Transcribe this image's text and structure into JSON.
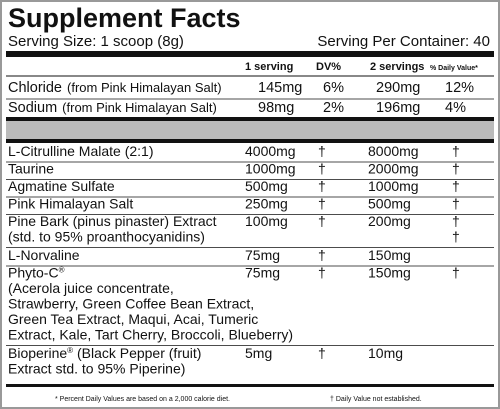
{
  "title": "Supplement Facts",
  "serving_size": "Serving Size: 1 scoop (8g)",
  "servings_per_container": "Serving Per Container: 40",
  "header": {
    "col1": "1 serving",
    "col2": "DV%",
    "col3": "2 servings",
    "col4": "% Daily Value*"
  },
  "electrolytes": [
    {
      "name": "Chloride",
      "source": "(from Pink Himalayan Salt)",
      "amount": "145mg",
      "dv": "6%",
      "amount2": "290mg",
      "dv2": "12%"
    },
    {
      "name": "Sodium",
      "source": "(from Pink Himalayan Salt)",
      "amount": "98mg",
      "dv": "2%",
      "amount2": "196mg",
      "dv2": "4%"
    }
  ],
  "ingredients": [
    {
      "name": "L-Citrulline Malate (2:1)",
      "amount": "4000mg",
      "dv": "†",
      "amount2": "8000mg",
      "dv2": "†"
    },
    {
      "name": "Taurine",
      "amount": "1000mg",
      "dv": "†",
      "amount2": "2000mg",
      "dv2": "†"
    },
    {
      "name": "Agmatine Sulfate",
      "amount": "500mg",
      "dv": "†",
      "amount2": "1000mg",
      "dv2": "†"
    },
    {
      "name": "Pink Himalayan Salt",
      "amount": "250mg",
      "dv": "†",
      "amount2": "500mg",
      "dv2": "†"
    },
    {
      "name": "Pine Bark (pinus pinaster) Extract",
      "more_lines": [
        "(std. to 95% proanthocyanidins)"
      ],
      "amount": "100mg",
      "dv": "†",
      "amount2": "200mg",
      "dv2": "†",
      "dv2_extra": "†"
    },
    {
      "name": "L-Norvaline",
      "amount": "75mg",
      "dv": "†",
      "amount2": "150mg"
    },
    {
      "name": "Phyto-C",
      "reg": "®",
      "more_lines": [
        "(Acerola juice concentrate,",
        "Strawberry, Green Coffee Bean Extract,",
        "Green Tea Extract, Maqui, Acai, Tumeric",
        "Extract, Kale, Tart Cherry, Broccoli, Blueberry)"
      ],
      "amount": "75mg",
      "dv": "†",
      "amount2": "150mg",
      "dv2": "†"
    },
    {
      "name": "Bioperine",
      "reg": "®",
      "name_rest": " (Black Pepper (fruit)",
      "more_lines": [
        "Extract std. to 95% Piperine)"
      ],
      "amount": "5mg",
      "dv": "†",
      "amount2": "10mg"
    }
  ],
  "footnotes": {
    "left": "* Percent Daily Values are based on a 2,000 calorie diet.",
    "right": "† Daily Value not established."
  }
}
